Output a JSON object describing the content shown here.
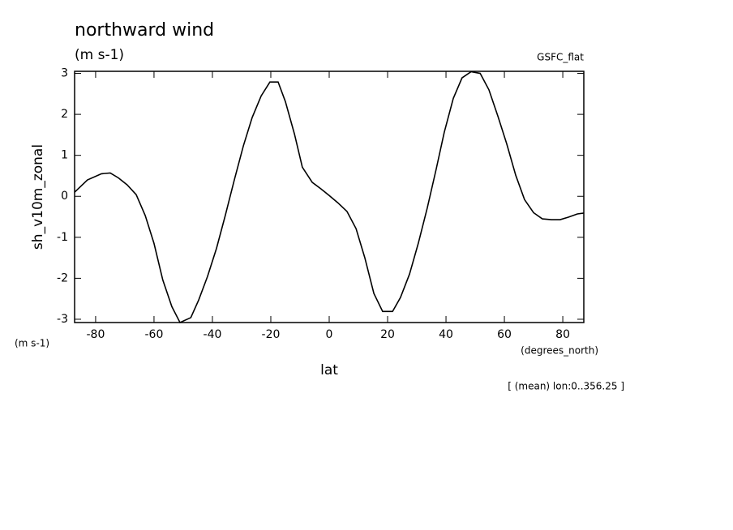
{
  "chart_data": {
    "type": "line",
    "title": "northward wind",
    "subtitle": "(m s-1)",
    "source": "GSFC_flat",
    "y_label": "sh_v10m_zonal",
    "y_units": "(m s-1)",
    "x_label": "lat",
    "x_units": "(degrees_north)",
    "footnote": "[ (mean) lon:0..356.25 ]",
    "x": [
      -87.2,
      -82.8,
      -78,
      -75,
      -72.2,
      -69.2,
      -66.1,
      -63,
      -60,
      -57,
      -53.9,
      -51.1,
      -47.4,
      -44.7,
      -41.7,
      -38.6,
      -35.6,
      -32.5,
      -29.4,
      -26.4,
      -23.3,
      -20.3,
      -17.5,
      -15,
      -11.9,
      -9.2,
      -5.8,
      -2.8,
      0,
      3,
      6.1,
      9.2,
      12.2,
      15.3,
      18.3,
      21.7,
      24.4,
      27.5,
      30.5,
      33.6,
      36.6,
      39.4,
      42.5,
      45.5,
      48.6,
      51.7,
      54.7,
      57.8,
      60.8,
      63.9,
      66.9,
      70,
      73,
      76.1,
      79.1,
      81.9,
      85,
      87.2
    ],
    "series": [
      {
        "color": "#000000",
        "values": [
          0.1,
          0.4,
          0.55,
          0.57,
          0.45,
          0.28,
          0.04,
          -0.47,
          -1.15,
          -2.04,
          -2.69,
          -3.08,
          -2.96,
          -2.53,
          -1.96,
          -1.27,
          -0.47,
          0.4,
          1.23,
          1.92,
          2.45,
          2.79,
          2.79,
          2.31,
          1.52,
          0.71,
          0.34,
          0.18,
          0.02,
          -0.16,
          -0.37,
          -0.79,
          -1.5,
          -2.37,
          -2.81,
          -2.81,
          -2.47,
          -1.9,
          -1.15,
          -0.28,
          0.65,
          1.56,
          2.39,
          2.89,
          3.04,
          3.0,
          2.6,
          1.95,
          1.28,
          0.51,
          -0.08,
          -0.4,
          -0.55,
          -0.57,
          -0.57,
          -0.51,
          -0.43,
          -0.41
        ]
      }
    ],
    "xlim": [
      -87.2,
      87.2
    ],
    "ylim": [
      -3.08,
      3.05
    ],
    "xticks": [
      -80,
      -60,
      -40,
      -20,
      0,
      20,
      40,
      60,
      80
    ],
    "yticks": [
      -3,
      -2,
      -1,
      0,
      1,
      2,
      3
    ],
    "grid": false
  }
}
